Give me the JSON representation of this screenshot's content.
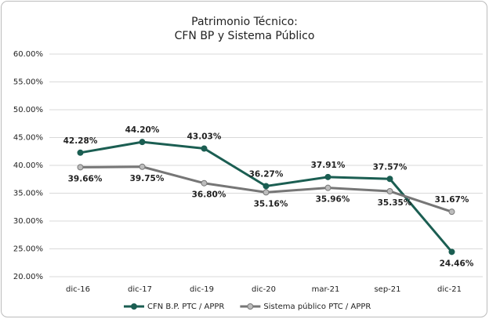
{
  "chart_data": {
    "type": "line",
    "title": [
      "Patrimonio Técnico:",
      "CFN BP y Sistema Público"
    ],
    "categories": [
      "dic-16",
      "dic-17",
      "dic-19",
      "dic-20",
      "mar-21",
      "sep-21",
      "dic-21"
    ],
    "series": [
      {
        "name": "CFN B.P.  PTC / APPR",
        "color": "#1b5e52",
        "marker_color": "#1b5e52",
        "values": [
          42.28,
          44.2,
          43.03,
          36.27,
          37.91,
          37.57,
          24.46
        ],
        "value_labels": [
          "42.28%",
          "44.20%",
          "43.03%",
          "36.27%",
          "37.91%",
          "37.57%",
          "24.46%"
        ]
      },
      {
        "name": "Sistema público PTC / APPR",
        "color": "#767676",
        "marker_color": "#bdbdbd",
        "values": [
          39.66,
          39.75,
          36.8,
          35.16,
          35.96,
          35.35,
          31.67
        ],
        "value_labels": [
          "39.66%",
          "39.75%",
          "36.80%",
          "35.16%",
          "35.96%",
          "35.35%",
          "31.67%"
        ]
      }
    ],
    "ylim": [
      20,
      60
    ],
    "yticks": [
      {
        "value": 20,
        "label": "20.00%"
      },
      {
        "value": 25,
        "label": "25.00%"
      },
      {
        "value": 30,
        "label": "30.00%"
      },
      {
        "value": 35,
        "label": "35.00%"
      },
      {
        "value": 40,
        "label": "40.00%"
      },
      {
        "value": 45,
        "label": "45.00%"
      },
      {
        "value": 50,
        "label": "50.00%"
      },
      {
        "value": 55,
        "label": "55.00%"
      },
      {
        "value": 60,
        "label": "60.00%"
      }
    ],
    "grid": true,
    "legend": "bottom"
  }
}
